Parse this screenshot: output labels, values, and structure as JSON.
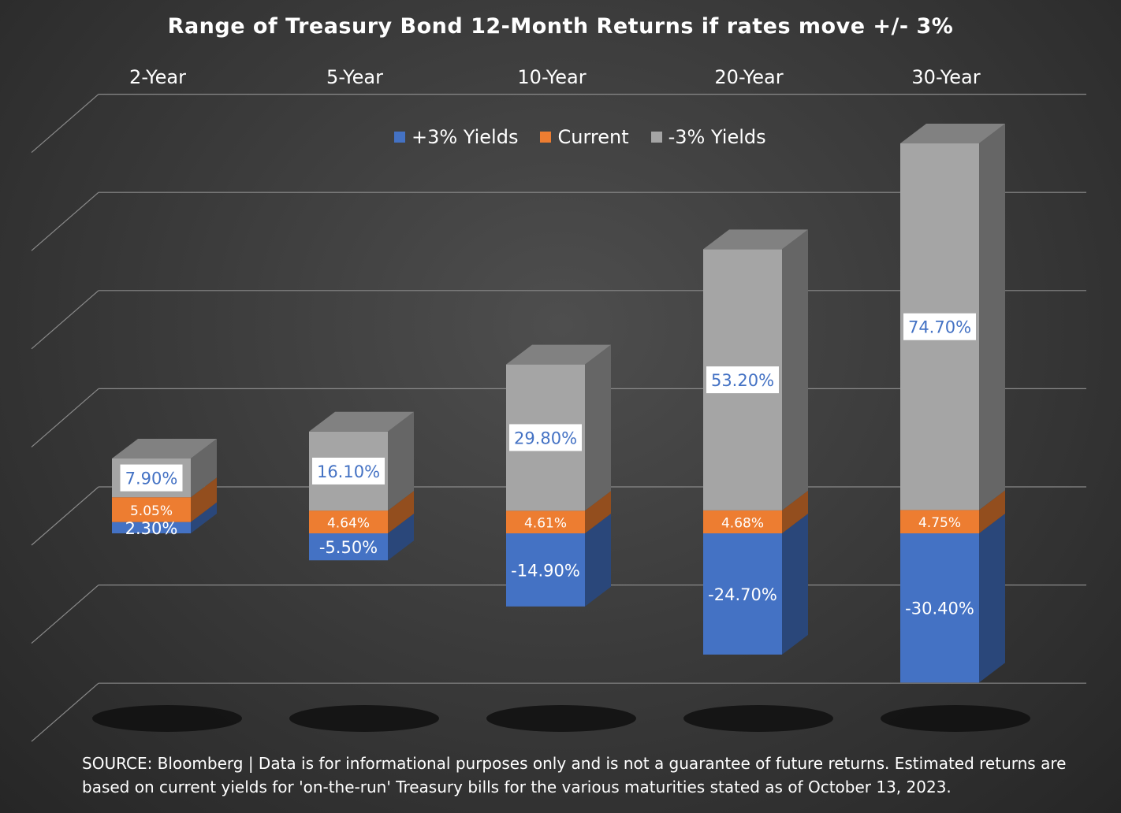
{
  "chart_data": {
    "type": "bar",
    "title": "Range of Treasury Bond 12-Month Returns if rates move +/- 3%",
    "categories": [
      "2-Year",
      "5-Year",
      "10-Year",
      "20-Year",
      "30-Year"
    ],
    "series": [
      {
        "name": "+3% Yields",
        "color": "#4472c4",
        "values": [
          2.3,
          -5.5,
          -14.9,
          -24.7,
          -30.4
        ],
        "labels": [
          "2.30%",
          "-5.50%",
          "-14.90%",
          "-24.70%",
          "-30.40%"
        ]
      },
      {
        "name": "Current",
        "color": "#ed7d31",
        "values": [
          5.05,
          4.64,
          4.61,
          4.68,
          4.75
        ],
        "labels": [
          "5.05%",
          "4.64%",
          "4.61%",
          "4.68%",
          "4.75%"
        ]
      },
      {
        "name": "-3% Yields",
        "color": "#a5a5a5",
        "values": [
          7.9,
          16.1,
          29.8,
          53.2,
          74.7
        ],
        "labels": [
          "7.90%",
          "16.10%",
          "29.80%",
          "53.20%",
          "74.70%"
        ]
      }
    ],
    "legend_position": "top",
    "grid": true,
    "source": "SOURCE: Bloomberg | Data is for informational purposes only and is not a guarantee of future returns. Estimated returns are based on current yields for 'on-the-run' Treasury bills for the various maturities stated as of October 13, 2023."
  }
}
